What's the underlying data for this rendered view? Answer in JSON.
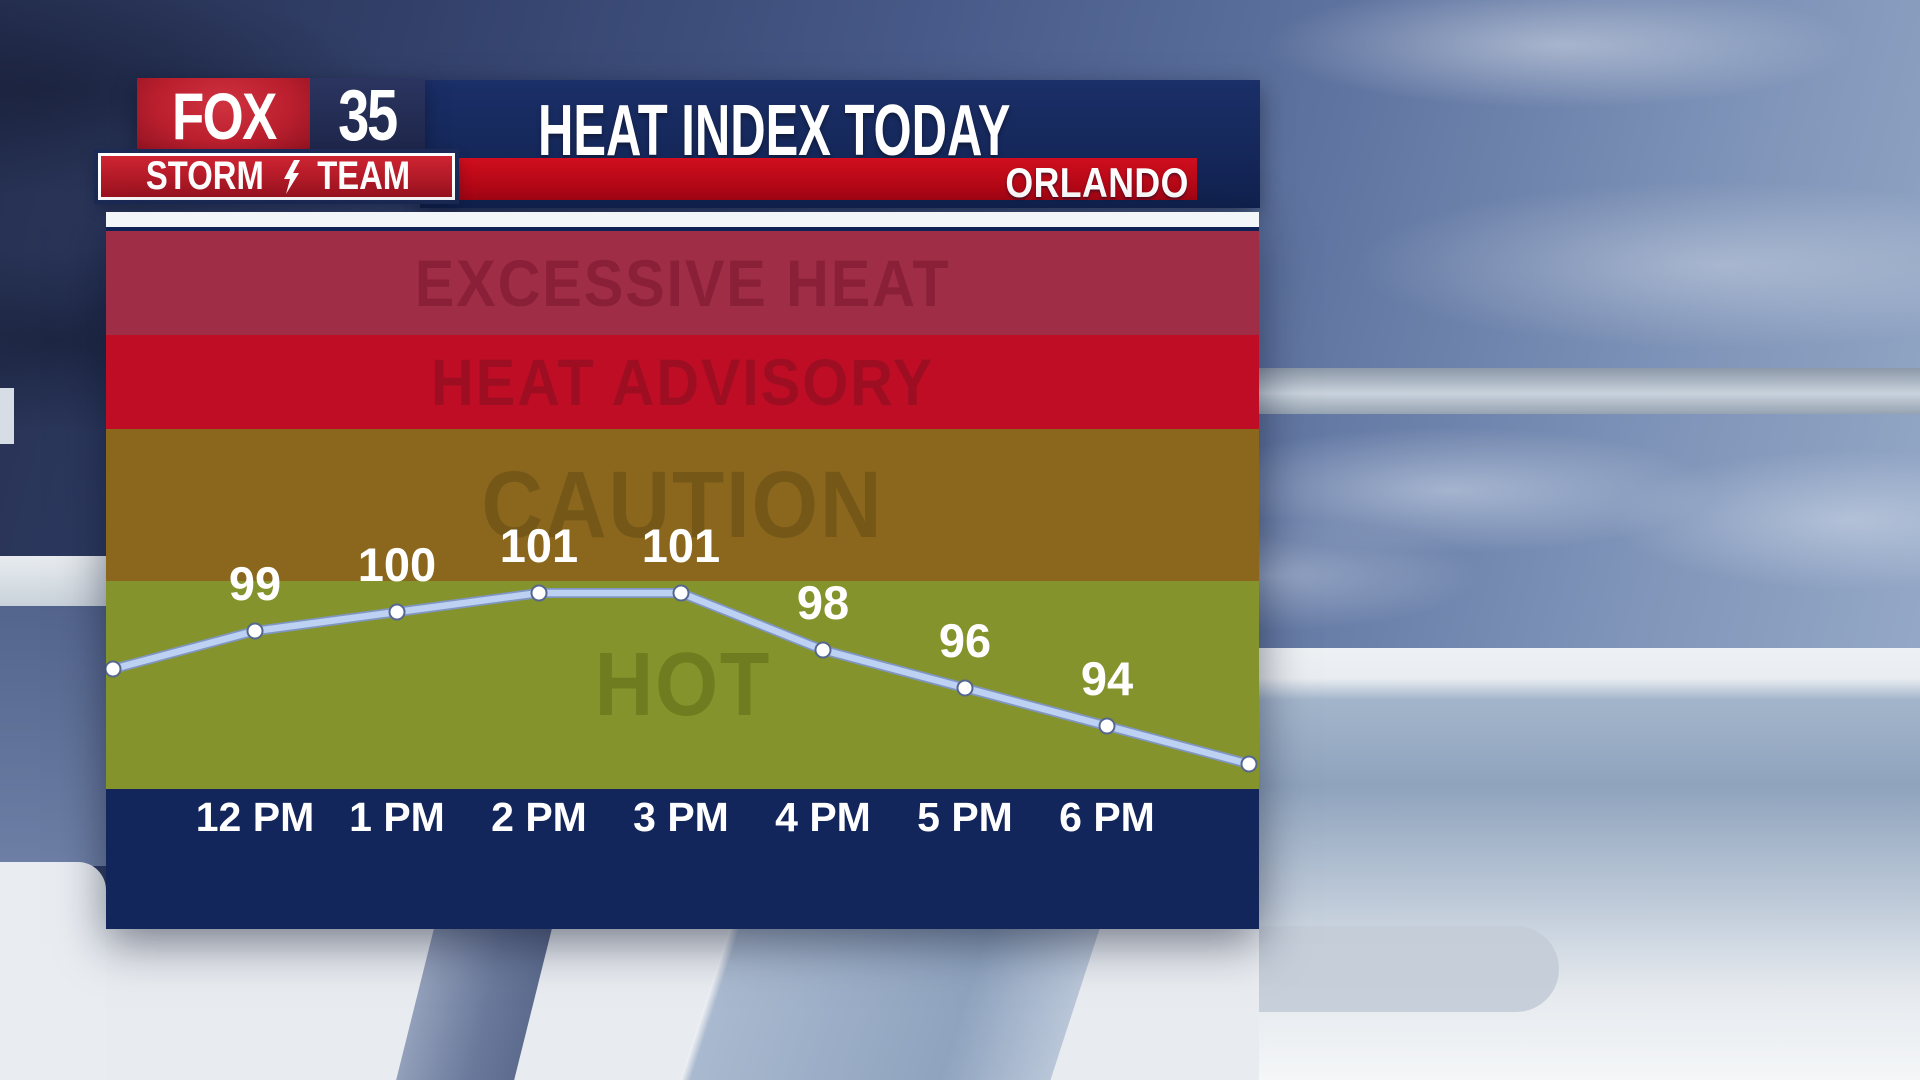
{
  "header": {
    "network": "FOX",
    "channel": "35",
    "storm": "STORM",
    "team": "TEAM",
    "title": "HEAT INDEX TODAY",
    "location": "ORLANDO"
  },
  "chart_data": {
    "type": "line",
    "title": "HEAT INDEX TODAY",
    "location": "ORLANDO",
    "x_tick_labels": [
      "12 PM",
      "1 PM",
      "2 PM",
      "3 PM",
      "4 PM",
      "5 PM",
      "6 PM"
    ],
    "series": [
      {
        "name": "Heat Index",
        "x": [
          "12 PM",
          "1 PM",
          "2 PM",
          "3 PM",
          "4 PM",
          "5 PM",
          "6 PM"
        ],
        "values": [
          99,
          100,
          101,
          101,
          98,
          96,
          94
        ]
      }
    ],
    "edge_points": {
      "left_unlabeled_approx": 97,
      "right_unlabeled_approx": 92
    },
    "bands": [
      {
        "label": "EXCESSIVE HEAT",
        "fill": "#A02D46",
        "label_color": "#8A2038"
      },
      {
        "label": "HEAT ADVISORY",
        "fill": "#C00D26",
        "label_color": "#9E0E22"
      },
      {
        "label": "CAUTION",
        "fill": "#8B671E",
        "label_color": "#755818"
      },
      {
        "label": "HOT",
        "fill": "#84932B",
        "label_color": "#6F7D20"
      }
    ],
    "line_color": "#BDD1F3",
    "line_edge_color": "#8096C2",
    "point_fill": "#FFFFFF",
    "point_stroke": "#55678F",
    "point_label_color": "#FFFFFF",
    "axis_label_color": "#FFFFFF",
    "axis_strip_color": "#13265B",
    "grid": false,
    "legend": false,
    "ylim_approx": [
      89,
      119
    ]
  }
}
